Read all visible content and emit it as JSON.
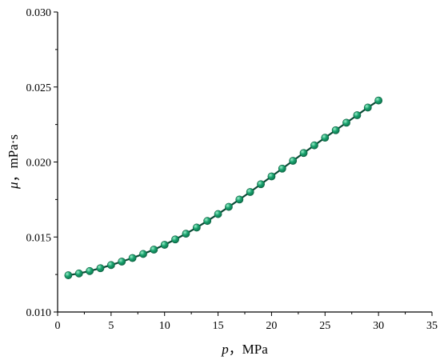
{
  "chart_data": {
    "type": "line",
    "xlabel": {
      "var": "p",
      "rest": "，MPa"
    },
    "ylabel": {
      "var": "μ",
      "rest": "，mPa·s"
    },
    "xlim": [
      0,
      35
    ],
    "ylim": [
      0.01,
      0.03
    ],
    "xticks": [
      "0",
      "5",
      "10",
      "15",
      "20",
      "25",
      "30",
      "35"
    ],
    "yticks": [
      "0.010",
      "0.015",
      "0.020",
      "0.025",
      "0.030"
    ],
    "grid": false,
    "colors": {
      "line": "#0a4a35",
      "marker": "#1aa36f",
      "marker_highlight": "#8fe8c2"
    },
    "series": [
      {
        "x": [
          1,
          2,
          3,
          4,
          5,
          6,
          7,
          8,
          9,
          10,
          11,
          12,
          13,
          14,
          15,
          16,
          17,
          18,
          19,
          20,
          21,
          22,
          23,
          24,
          25,
          26,
          27,
          28,
          29,
          30
        ],
        "values": [
          0.01245,
          0.01257,
          0.01273,
          0.01292,
          0.01313,
          0.01336,
          0.0136,
          0.01387,
          0.01416,
          0.01448,
          0.01484,
          0.01522,
          0.01563,
          0.01607,
          0.01653,
          0.01701,
          0.0175,
          0.018,
          0.01852,
          0.01904,
          0.01956,
          0.02008,
          0.0206,
          0.02111,
          0.02162,
          0.02212,
          0.02262,
          0.02312,
          0.02363,
          0.0241
        ]
      }
    ]
  }
}
